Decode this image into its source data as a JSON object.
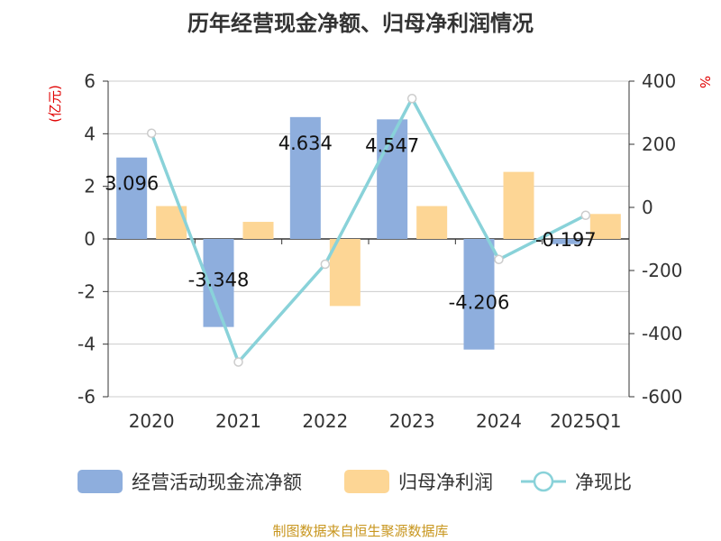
{
  "chart_data": {
    "type": "bar",
    "title": "历年经营现金净额、归母净利润情况",
    "categories": [
      "2020",
      "2021",
      "2022",
      "2023",
      "2024",
      "2025Q1"
    ],
    "left_axis": {
      "unit": "(亿元)",
      "ylim": [
        -6,
        6
      ],
      "ticks": [
        6,
        4,
        2,
        0,
        -2,
        -4,
        -6
      ]
    },
    "right_axis": {
      "unit": "%",
      "ylim": [
        -600,
        400
      ],
      "ticks": [
        400,
        200,
        0,
        -200,
        -400,
        -600
      ]
    },
    "series": [
      {
        "name": "经营活动现金流净额",
        "type": "bar",
        "axis": "left",
        "color": "#8eaedd",
        "values": [
          3.096,
          -3.348,
          4.634,
          4.547,
          -4.206,
          -0.197
        ],
        "labels": [
          "3.096",
          "-3.348",
          "4.634",
          "4.547",
          "-4.206",
          "-0.197"
        ]
      },
      {
        "name": "归母净利润",
        "type": "bar",
        "axis": "left",
        "color": "#fdd695",
        "values": [
          1.25,
          0.65,
          -2.55,
          1.25,
          2.55,
          0.95
        ]
      },
      {
        "name": "净现比",
        "type": "line",
        "axis": "right",
        "color": "#89d2d9",
        "values": [
          235,
          -490,
          -180,
          345,
          -165,
          -25
        ]
      }
    ],
    "grid": true,
    "legend_position": "bottom"
  },
  "source": "制图数据来自恒生聚源数据库"
}
